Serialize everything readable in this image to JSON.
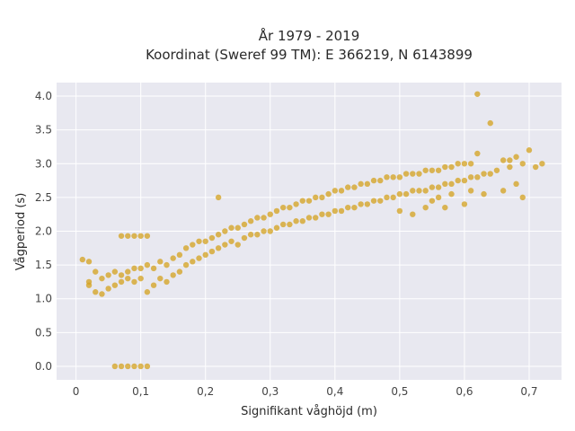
{
  "chart_data": {
    "type": "scatter",
    "title": "År 1979 - 2019",
    "subtitle": "Koordinat (Sweref 99 TM): E 366219, N 6143899",
    "xlabel": "Signifikant våghöjd (m)",
    "ylabel": "Vågperiod (s)",
    "xlim": [
      -0.03,
      0.75
    ],
    "ylim": [
      -0.2,
      4.2
    ],
    "x_ticks": [
      0,
      0.1,
      0.2,
      0.3,
      0.4,
      0.5,
      0.6,
      0.7
    ],
    "x_tick_labels": [
      "0",
      "0,1",
      "0,2",
      "0,3",
      "0,4",
      "0,5",
      "0,6",
      "0,7"
    ],
    "y_ticks": [
      0,
      0.5,
      1,
      1.5,
      2,
      2.5,
      3,
      3.5,
      4
    ],
    "y_tick_labels": [
      "0.0",
      "0.5",
      "1.0",
      "1.5",
      "2.0",
      "2.5",
      "3.0",
      "3.5",
      "4.0"
    ],
    "grid": true,
    "colors": {
      "marker": "#D4A21E",
      "plot_bg": "#E8E8F0",
      "grid": "#ffffff"
    },
    "series": [
      {
        "color": "#D4A21E",
        "x": [
          0.01,
          0.02,
          0.02,
          0.02,
          0.03,
          0.03,
          0.04,
          0.04,
          0.05,
          0.05,
          0.06,
          0.06,
          0.07,
          0.07,
          0.08,
          0.08,
          0.09,
          0.09,
          0.1,
          0.1,
          0.11,
          0.11,
          0.12,
          0.12,
          0.13,
          0.13,
          0.14,
          0.14,
          0.15,
          0.15,
          0.16,
          0.16,
          0.17,
          0.17,
          0.18,
          0.18,
          0.19,
          0.19,
          0.2,
          0.2,
          0.21,
          0.21,
          0.22,
          0.22,
          0.23,
          0.23,
          0.24,
          0.24,
          0.25,
          0.25,
          0.26,
          0.26,
          0.27,
          0.27,
          0.28,
          0.28,
          0.29,
          0.29,
          0.3,
          0.3,
          0.31,
          0.31,
          0.32,
          0.32,
          0.33,
          0.33,
          0.34,
          0.34,
          0.35,
          0.35,
          0.36,
          0.36,
          0.37,
          0.37,
          0.38,
          0.38,
          0.39,
          0.39,
          0.4,
          0.4,
          0.41,
          0.41,
          0.42,
          0.42,
          0.43,
          0.43,
          0.44,
          0.44,
          0.45,
          0.45,
          0.46,
          0.46,
          0.47,
          0.47,
          0.48,
          0.48,
          0.49,
          0.49,
          0.5,
          0.5,
          0.51,
          0.51,
          0.52,
          0.52,
          0.53,
          0.53,
          0.54,
          0.54,
          0.55,
          0.55,
          0.56,
          0.56,
          0.57,
          0.57,
          0.58,
          0.58,
          0.59,
          0.59,
          0.6,
          0.6,
          0.61,
          0.61,
          0.62,
          0.62,
          0.63,
          0.64,
          0.65,
          0.66,
          0.67,
          0.68,
          0.69,
          0.7,
          0.71,
          0.72,
          0.62,
          0.64,
          0.67,
          0.69,
          0.22,
          0.07,
          0.08,
          0.09,
          0.1,
          0.11,
          0.06,
          0.07,
          0.08,
          0.09,
          0.1,
          0.11,
          0.55,
          0.56,
          0.57,
          0.58,
          0.6,
          0.61,
          0.63,
          0.66,
          0.68,
          0.5,
          0.52,
          0.54
        ],
        "y": [
          1.58,
          1.55,
          1.25,
          1.2,
          1.1,
          1.4,
          1.07,
          1.3,
          1.35,
          1.15,
          1.4,
          1.2,
          1.35,
          1.25,
          1.4,
          1.3,
          1.45,
          1.25,
          1.45,
          1.3,
          1.5,
          1.1,
          1.45,
          1.2,
          1.55,
          1.3,
          1.5,
          1.25,
          1.6,
          1.35,
          1.65,
          1.4,
          1.75,
          1.5,
          1.8,
          1.55,
          1.85,
          1.6,
          1.85,
          1.65,
          1.9,
          1.7,
          1.95,
          1.75,
          2.0,
          1.8,
          2.05,
          1.85,
          2.05,
          1.8,
          2.1,
          1.9,
          2.15,
          1.95,
          2.2,
          1.95,
          2.2,
          2.0,
          2.25,
          2.0,
          2.3,
          2.05,
          2.35,
          2.1,
          2.35,
          2.1,
          2.4,
          2.15,
          2.45,
          2.15,
          2.45,
          2.2,
          2.5,
          2.2,
          2.5,
          2.25,
          2.55,
          2.25,
          2.6,
          2.3,
          2.6,
          2.3,
          2.65,
          2.35,
          2.65,
          2.35,
          2.7,
          2.4,
          2.7,
          2.4,
          2.75,
          2.45,
          2.75,
          2.45,
          2.8,
          2.5,
          2.8,
          2.5,
          2.8,
          2.55,
          2.85,
          2.55,
          2.85,
          2.6,
          2.85,
          2.6,
          2.9,
          2.6,
          2.9,
          2.65,
          2.9,
          2.65,
          2.95,
          2.7,
          2.95,
          2.7,
          3.0,
          2.75,
          3.0,
          2.75,
          3.0,
          2.8,
          3.15,
          2.8,
          2.85,
          2.85,
          2.9,
          3.05,
          2.95,
          3.1,
          3.0,
          3.2,
          2.95,
          3.0,
          4.03,
          3.6,
          3.05,
          2.5,
          2.5,
          1.93,
          1.93,
          1.93,
          1.93,
          1.93,
          0.0,
          0.0,
          0.0,
          0.0,
          0.0,
          0.0,
          2.45,
          2.5,
          2.35,
          2.55,
          2.4,
          2.6,
          2.55,
          2.6,
          2.7,
          2.3,
          2.25,
          2.35
        ]
      }
    ]
  }
}
